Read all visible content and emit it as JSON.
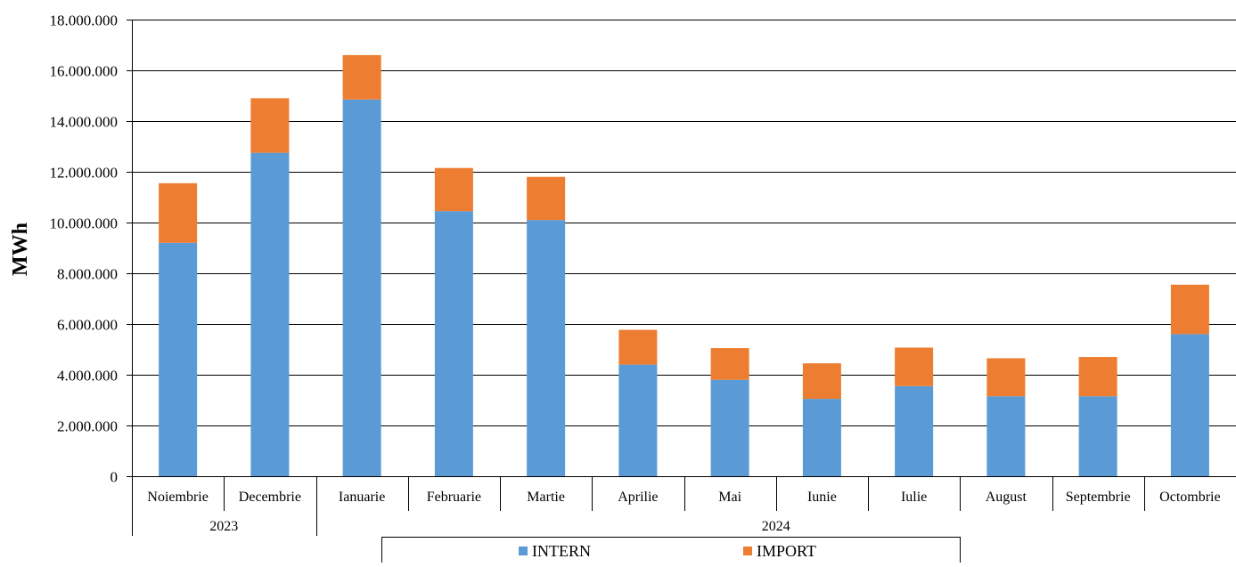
{
  "chart_data": {
    "type": "bar",
    "stacked": true,
    "ylabel": "MWh",
    "ylim": [
      0,
      18000000
    ],
    "yticks": [
      0,
      2000000,
      4000000,
      6000000,
      8000000,
      10000000,
      12000000,
      14000000,
      16000000,
      18000000
    ],
    "ytick_labels": [
      "0",
      "2.000.000",
      "4.000.000",
      "6.000.000",
      "8.000.000",
      "10.000.000",
      "12.000.000",
      "14.000.000",
      "16.000.000",
      "18.000.000"
    ],
    "categories": [
      "Noiembrie",
      "Decembrie",
      "Ianuarie",
      "Februarie",
      "Martie",
      "Aprilie",
      "Mai",
      "Iunie",
      "Iulie",
      "August",
      "Septembrie",
      "Octombrie"
    ],
    "groups": [
      {
        "label": "2023",
        "count": 2
      },
      {
        "label": "2024",
        "count": 10
      }
    ],
    "series": [
      {
        "name": "INTERN",
        "color": "#5B9BD5",
        "values": [
          9200000,
          12750000,
          14850000,
          10450000,
          10100000,
          4400000,
          3800000,
          3050000,
          3550000,
          3150000,
          3150000,
          5600000
        ]
      },
      {
        "name": "IMPORT",
        "color": "#ED7D31",
        "values": [
          2350000,
          2150000,
          1750000,
          1700000,
          1700000,
          1370000,
          1250000,
          1400000,
          1520000,
          1500000,
          1550000,
          1950000
        ]
      }
    ],
    "grid": true,
    "legend_position": "bottom"
  }
}
